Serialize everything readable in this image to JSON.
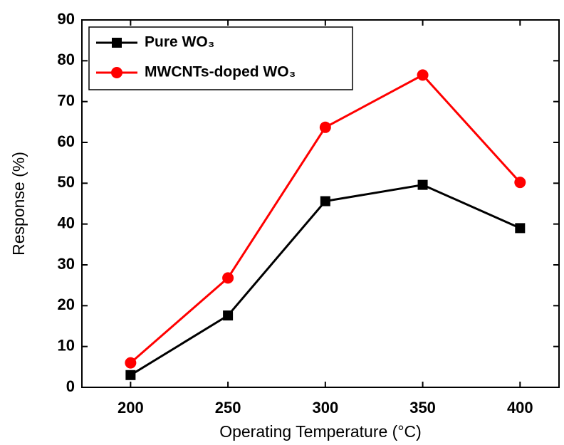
{
  "chart_data": {
    "type": "line",
    "x_label": "Operating Temperature (°C)",
    "y_label": "Response (%)",
    "x": [
      200,
      250,
      300,
      350,
      400
    ],
    "series": [
      {
        "name": "Pure WO₃",
        "color": "#000000",
        "marker": "square",
        "values": [
          3,
          17.6,
          45.6,
          49.6,
          39
        ]
      },
      {
        "name": "MWCNTs-doped WO₃",
        "color": "#ff0000",
        "marker": "circle",
        "values": [
          6,
          26.8,
          63.7,
          76.5,
          50.2
        ]
      }
    ],
    "xlim": [
      175,
      420
    ],
    "ylim": [
      0,
      90
    ],
    "xticks": [
      200,
      250,
      300,
      350,
      400
    ],
    "yticks": [
      0,
      10,
      20,
      30,
      40,
      50,
      60,
      70,
      80,
      90
    ],
    "legend": "upper left"
  }
}
